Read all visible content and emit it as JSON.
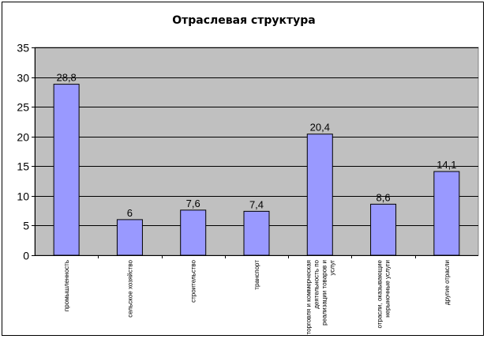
{
  "chart_data": {
    "type": "bar",
    "title": "Отраслевая структура",
    "categories": [
      [
        "промышленность"
      ],
      [
        "сельское хозяйство"
      ],
      [
        "строительство"
      ],
      [
        "транспорт"
      ],
      [
        "торговля и коммерческая",
        "деятельность по",
        "реализации товаров и",
        "услуг"
      ],
      [
        "отрасли, оказывающие",
        "нерыночные услуги"
      ],
      [
        "другие отрасли"
      ]
    ],
    "values": [
      28.8,
      6,
      7.6,
      7.4,
      20.4,
      8.6,
      14.1
    ],
    "data_labels": [
      "28,8",
      "6",
      "7,6",
      "7,4",
      "20,4",
      "8,6",
      "14,1"
    ],
    "ylim": [
      0,
      35
    ],
    "yticks": [
      0,
      5,
      10,
      15,
      20,
      25,
      30,
      35
    ],
    "grid": true,
    "legend": "none",
    "colors": {
      "plot_background": "#c0c0c0",
      "bar_fill": "#9999ff",
      "bar_stroke": "#000000",
      "gridline": "#000000"
    }
  }
}
